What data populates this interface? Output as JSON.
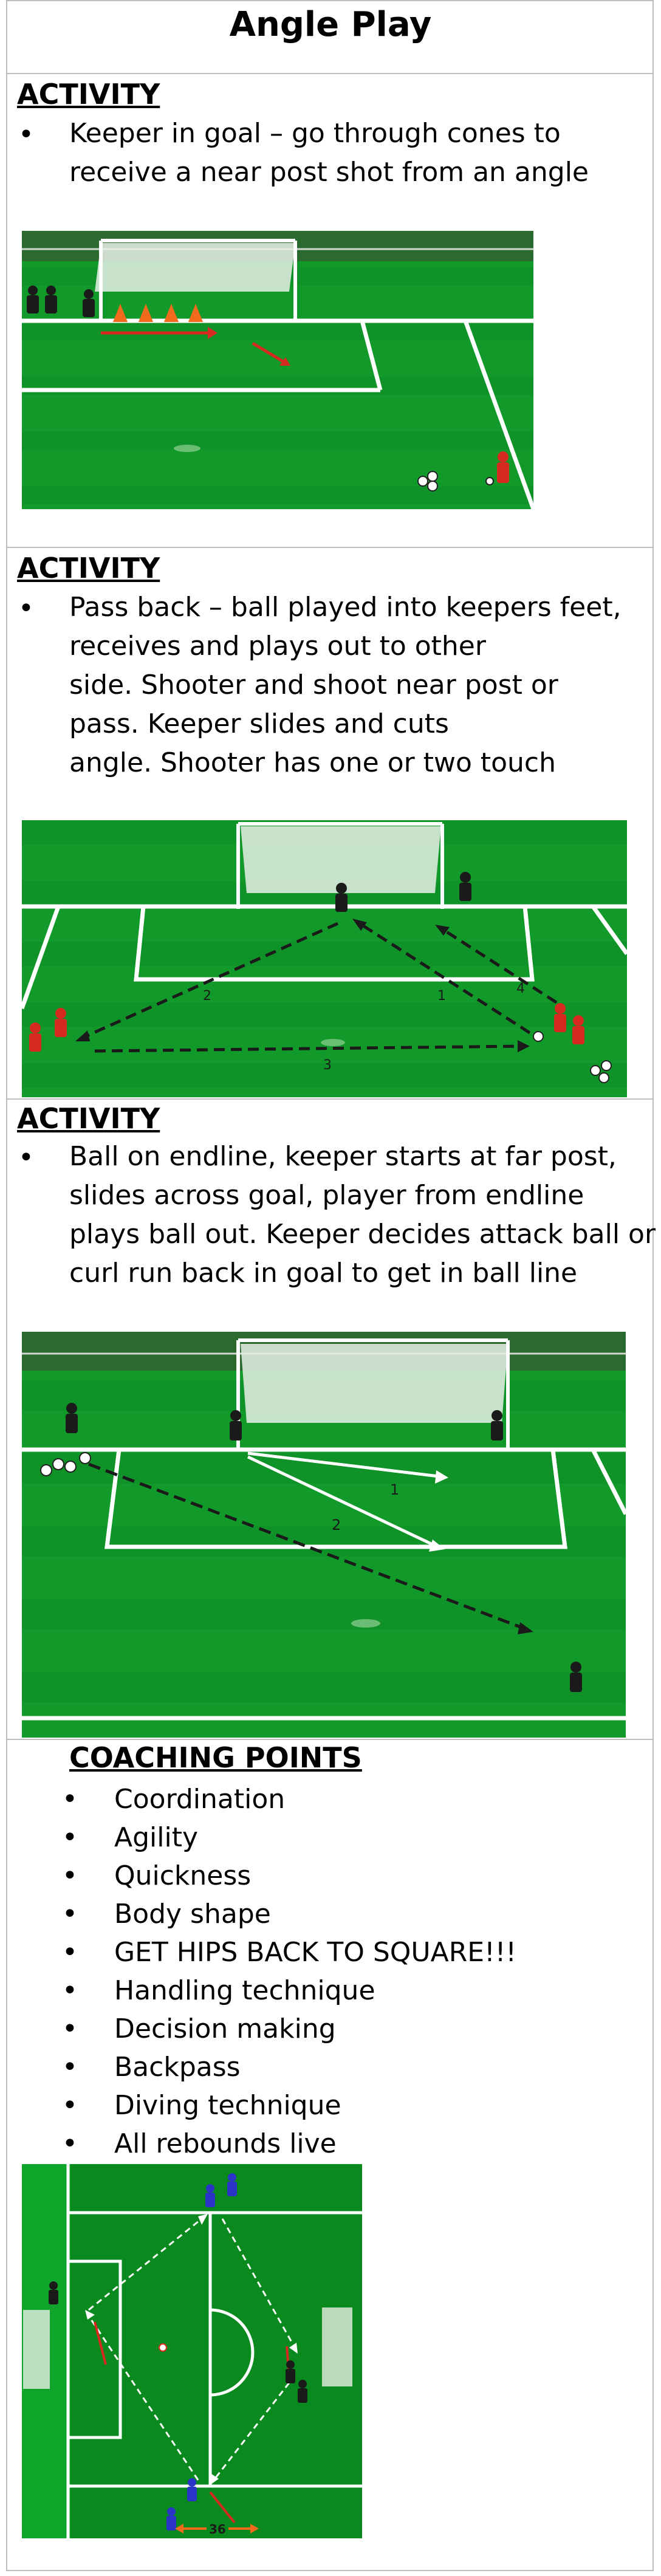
{
  "page": {
    "title": "Angle Play"
  },
  "sections": [
    {
      "heading": "ACTIVITY",
      "lines": [
        "Keeper in goal – go through cones to",
        "receive a near post shot from an angle"
      ],
      "diagram": {
        "icons": [
          "goal-icon",
          "cone-icon",
          "keeper-icon",
          "player-icon",
          "ball-icon",
          "arrow-icon"
        ]
      }
    },
    {
      "heading": "ACTIVITY",
      "lines": [
        "Pass back – ball played into keepers feet,",
        "receives and plays out to other",
        "side.  Shooter and shoot near post or",
        "pass.  Keeper slides and cuts",
        "angle.  Shooter has one or two touch"
      ],
      "diagram": {
        "labels": [
          "2",
          "1",
          "4",
          "3"
        ]
      }
    },
    {
      "heading": "ACTIVITY",
      "lines": [
        "Ball on endline, keeper starts at far post,",
        "slides across goal, player from endline",
        "plays ball out.  Keeper decides attack ball or",
        "curl run back in goal to get in ball line"
      ],
      "diagram": {
        "labels": [
          "1",
          "2"
        ]
      }
    }
  ],
  "coaching_points": {
    "heading": "COACHING POINTS",
    "items": [
      "Coordination",
      "Agility",
      "Quickness",
      "Body shape",
      "GET HIPS BACK TO SQUARE!!!",
      "Handling technique",
      "Decision making",
      "Backpass",
      "Diving technique",
      "All rebounds live"
    ],
    "diagram": {
      "label": "36"
    }
  },
  "colors": {
    "pitch": "#119a2a",
    "pitch_dark": "#0c7d22",
    "line": "#ffffff",
    "arrow_red": "#d62a1f",
    "cone": "#f26a1b"
  }
}
